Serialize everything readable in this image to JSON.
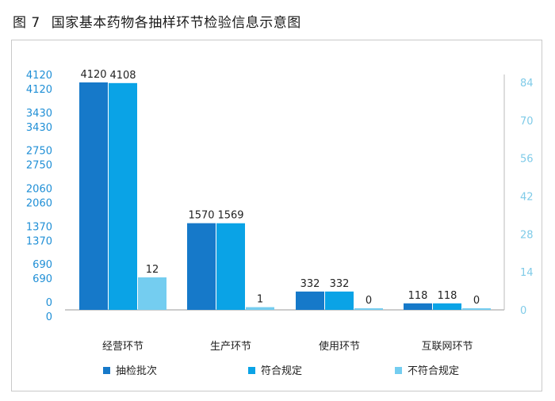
{
  "figure": {
    "number": "图 7",
    "title": "国家基本药物各抽样环节检验信息示意图"
  },
  "colors": {
    "series": [
      "#1679c9",
      "#0aa3e6",
      "#74cdf0"
    ],
    "left_axis_text": "#1f8fd6",
    "right_axis_text": "#7fcbe8",
    "axis_line": "#999999",
    "frame": "#c9c9c9"
  },
  "chart_data": {
    "type": "bar",
    "categories": [
      "经营环节",
      "生产环节",
      "使用环节",
      "互联网环节"
    ],
    "series": [
      {
        "name": "抽检批次",
        "values": [
          4120,
          1570,
          332,
          118
        ],
        "axis": "left"
      },
      {
        "name": "符合规定",
        "values": [
          4108,
          1569,
          332,
          118
        ],
        "axis": "left"
      },
      {
        "name": "不符合规定",
        "values": [
          12,
          1,
          0,
          0
        ],
        "axis": "right"
      }
    ],
    "left_axis": {
      "ticks": [
        0,
        690,
        1370,
        2060,
        2750,
        3430,
        4120
      ],
      "tick_labels": [
        "0",
        "690",
        "1370",
        "2060",
        "2750",
        "3430",
        "4120"
      ],
      "ylim": [
        0,
        4120
      ],
      "duplicated_labels": true
    },
    "right_axis": {
      "ticks": [
        0,
        14,
        28,
        42,
        56,
        70,
        84
      ],
      "tick_labels": [
        "0",
        "14",
        "28",
        "42",
        "56",
        "70",
        "84"
      ],
      "ylim": [
        0,
        84
      ]
    },
    "data_labels": [
      [
        "4120",
        "1570",
        "332",
        "118"
      ],
      [
        "4108",
        "1569",
        "332",
        "118"
      ],
      [
        "12",
        "1",
        "0",
        "0"
      ]
    ],
    "grid": false,
    "legend_position": "bottom"
  }
}
